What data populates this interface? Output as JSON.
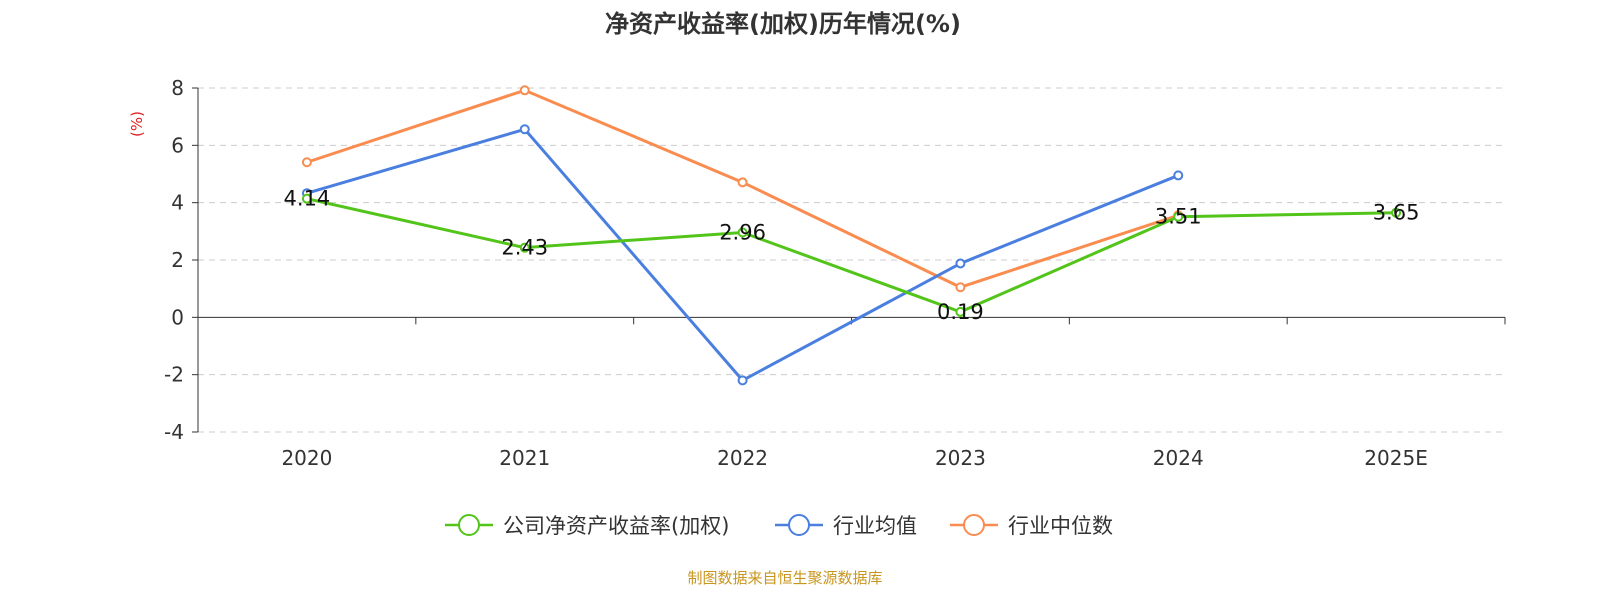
{
  "chart_data": {
    "type": "line",
    "title": "净资产收益率(加权)历年情况(%)",
    "ylabel": "(%)",
    "xlabel": "",
    "ylim": [
      -4,
      8
    ],
    "yticks": [
      "8",
      "6",
      "4",
      "2",
      "0",
      "-2",
      "-4"
    ],
    "ytick_values": [
      8,
      6,
      4,
      2,
      0,
      -2,
      -4
    ],
    "categories": [
      "2020",
      "2021",
      "2022",
      "2023",
      "2024",
      "2025E"
    ],
    "grid": true,
    "legend_position": "bottom",
    "series": [
      {
        "name": "公司净资产收益率(加权)",
        "color": "#52c41a",
        "values": [
          4.14,
          2.43,
          2.96,
          0.19,
          3.51,
          3.65
        ],
        "labels": [
          "4.14",
          "2.43",
          "2.96",
          "0.19",
          "3.51",
          "3.65"
        ]
      },
      {
        "name": "行业均值",
        "color": "#4a7fe0",
        "values": [
          4.33,
          6.56,
          -2.2,
          1.88,
          4.95,
          null
        ]
      },
      {
        "name": "行业中位数",
        "color": "#fa8c50",
        "values": [
          5.41,
          7.92,
          4.71,
          1.05,
          3.56,
          null
        ]
      }
    ]
  },
  "footer": {
    "source": "制图数据来自恒生聚源数据库",
    "color": "#c8961e"
  }
}
